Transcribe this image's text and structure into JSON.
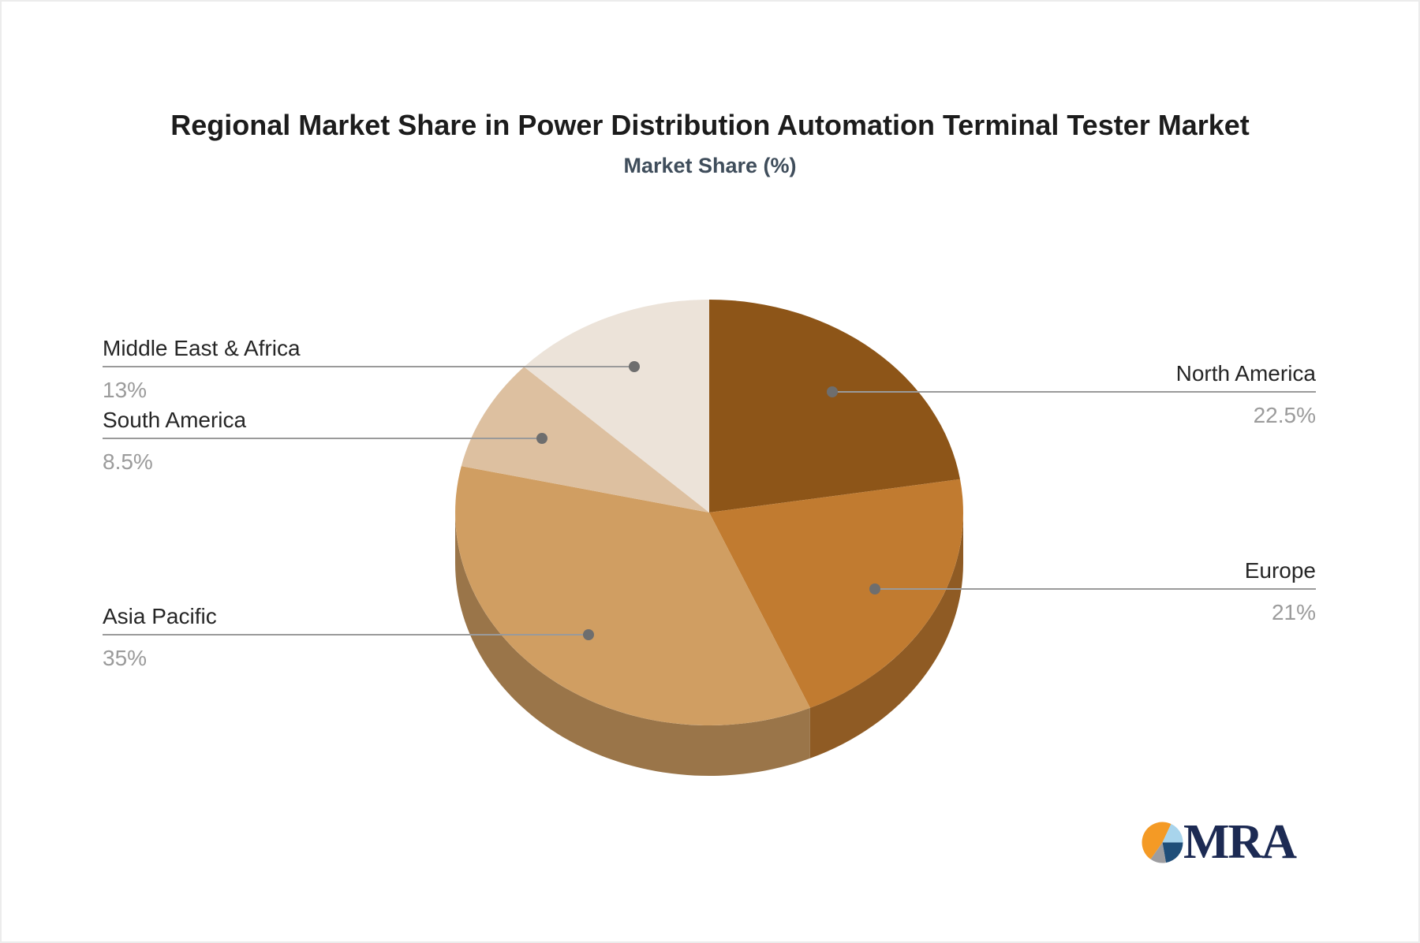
{
  "title": "Regional Market Share in Power Distribution Automation Terminal Tester Market",
  "subtitle": "Market Share (%)",
  "chart_data": {
    "type": "pie",
    "style": "3d",
    "unit": "%",
    "start_angle_deg": 0,
    "direction": "clockwise",
    "legend": "none",
    "series": [
      {
        "name": "North America",
        "value": 22.5,
        "display": "22.5%",
        "color": "#8d5518",
        "label_side": "right"
      },
      {
        "name": "Europe",
        "value": 21,
        "display": "21%",
        "color": "#c17b30",
        "label_side": "right"
      },
      {
        "name": "Asia Pacific",
        "value": 35,
        "display": "35%",
        "color": "#d09e62",
        "label_side": "left"
      },
      {
        "name": "South America",
        "value": 8.5,
        "display": "8.5%",
        "color": "#ddc0a0",
        "label_side": "left"
      },
      {
        "name": "Middle East & Africa",
        "value": 13,
        "display": "13%",
        "color": "#ece3d9",
        "label_side": "left"
      }
    ]
  },
  "colors": {
    "background": "#ffffff",
    "title": "#1c1c1c",
    "subtitle": "#3f4d5b",
    "label_name": "#262626",
    "label_value": "#9b9b9b",
    "leader_line": "#9a9a9a",
    "leader_dot": "#6e6e6e"
  },
  "logo": {
    "text": "MRA",
    "text_color": "#1c2a53",
    "icon_colors": {
      "orange": "#f49a25",
      "light_blue": "#a8d4ec",
      "navy": "#1f4e79",
      "gray": "#9d9da0"
    }
  }
}
